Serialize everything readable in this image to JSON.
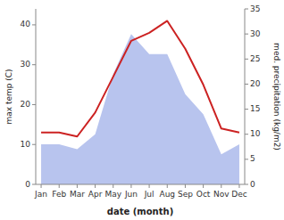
{
  "chart_data": {
    "type": "line",
    "xlabel": "date (month)",
    "ylabel": "max temp (C)",
    "y2label": "med. precipitation (kg/m2)",
    "categories": [
      "Jan",
      "Feb",
      "Mar",
      "Apr",
      "May",
      "Jun",
      "Jul",
      "Aug",
      "Sep",
      "Oct",
      "Nov",
      "Dec"
    ],
    "series": [
      {
        "type": "area",
        "axis": "y2",
        "color": "#b8c4ee",
        "values": [
          8,
          8,
          7,
          10,
          22,
          30,
          26,
          26,
          18,
          14,
          6,
          8
        ]
      },
      {
        "type": "line",
        "color": "#cc2222",
        "values": [
          13,
          13,
          12,
          18,
          27,
          36,
          38,
          41,
          34,
          25,
          14,
          13
        ]
      }
    ],
    "ylim": [
      0,
      44
    ],
    "yticks": [
      0,
      10,
      20,
      30,
      40
    ],
    "y2lim": [
      0,
      35
    ],
    "y2ticks": [
      0,
      5,
      10,
      15,
      20,
      25,
      30,
      35
    ],
    "grid": false
  }
}
